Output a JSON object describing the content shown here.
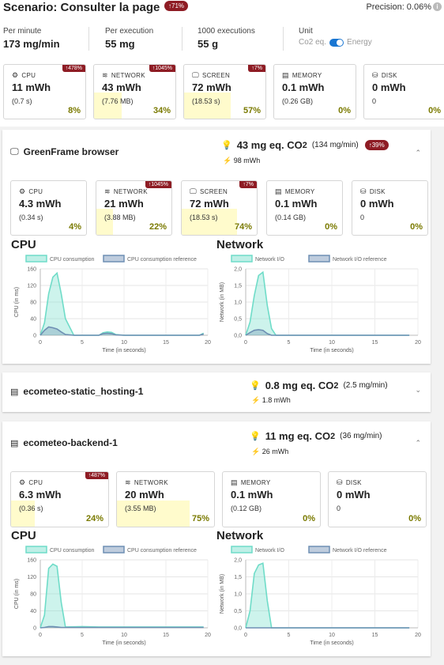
{
  "scenario": {
    "title": "Scenario: Consulter la page",
    "badge": "↑71%",
    "precision": "Precision: 0.06%"
  },
  "stats": [
    {
      "label": "Per minute",
      "value": "173 mg/min"
    },
    {
      "label": "Per execution",
      "value": "55 mg"
    },
    {
      "label": "1000 executions",
      "value": "55 g"
    }
  ],
  "unit": {
    "label": "Unit",
    "left": "Co2 eq.",
    "right": "Energy",
    "selected": "Energy"
  },
  "summary_cards": [
    {
      "icon": "cpu-icon",
      "label": "CPU",
      "value": "11 mWh",
      "sub": "(0.7 s)",
      "pct": "8%",
      "badge": "↑478%",
      "fill": 0.08
    },
    {
      "icon": "wifi-icon",
      "label": "NETWORK",
      "value": "43 mWh",
      "sub": "(7.76 MB)",
      "pct": "34%",
      "badge": "↑1045%",
      "fill": 0.34
    },
    {
      "icon": "monitor-icon",
      "label": "SCREEN",
      "value": "72 mWh",
      "sub": "(18.53 s)",
      "pct": "57%",
      "badge": "↑7%",
      "fill": 0.57
    },
    {
      "icon": "memory-icon",
      "label": "MEMORY",
      "value": "0.1 mWh",
      "sub": "(0.26 GB)",
      "pct": "0%",
      "badge": "",
      "fill": 0
    },
    {
      "icon": "disk-icon",
      "label": "DISK",
      "value": "0 mWh",
      "sub": "0",
      "pct": "0%",
      "badge": "",
      "fill": 0
    }
  ],
  "containers": [
    {
      "title": "GreenFrame browser",
      "co2": "43 mg eq. CO",
      "rate": "(134 mg/min)",
      "badge": "↑39%",
      "mwh": "98 mWh",
      "chevron": "⌃",
      "cards": [
        {
          "icon": "cpu-icon",
          "label": "CPU",
          "value": "4.3 mWh",
          "sub": "(0.34 s)",
          "pct": "4%",
          "badge": "",
          "fill": 0.04
        },
        {
          "icon": "wifi-icon",
          "label": "NETWORK",
          "value": "21 mWh",
          "sub": "(3.88 MB)",
          "pct": "22%",
          "badge": "↑1045%",
          "fill": 0.22
        },
        {
          "icon": "monitor-icon",
          "label": "SCREEN",
          "value": "72 mWh",
          "sub": "(18.53 s)",
          "pct": "74%",
          "badge": "↑7%",
          "fill": 0.74
        },
        {
          "icon": "memory-icon",
          "label": "MEMORY",
          "value": "0.1 mWh",
          "sub": "(0.14 GB)",
          "pct": "0%",
          "badge": "",
          "fill": 0
        },
        {
          "icon": "disk-icon",
          "label": "DISK",
          "value": "0 mWh",
          "sub": "0",
          "pct": "0%",
          "badge": "",
          "fill": 0
        }
      ]
    },
    {
      "title": "ecometeo-static_hosting-1",
      "co2": "0.8 mg eq. CO",
      "rate": "(2.5 mg/min)",
      "badge": "",
      "mwh": "1.8 mWh",
      "chevron": "⌄"
    },
    {
      "title": "ecometeo-backend-1",
      "co2": "11 mg eq. CO",
      "rate": "(36 mg/min)",
      "badge": "",
      "mwh": "26 mWh",
      "chevron": "⌃",
      "cards": [
        {
          "icon": "cpu-icon",
          "label": "CPU",
          "value": "6.3 mWh",
          "sub": "(0.36 s)",
          "pct": "24%",
          "badge": "↑487%",
          "fill": 0.24
        },
        {
          "icon": "wifi-icon",
          "label": "NETWORK",
          "value": "20 mWh",
          "sub": "(3.55 MB)",
          "pct": "75%",
          "badge": "",
          "fill": 0.75
        },
        {
          "icon": "memory-icon",
          "label": "MEMORY",
          "value": "0.1 mWh",
          "sub": "(0.12 GB)",
          "pct": "0%",
          "badge": "",
          "fill": 0
        },
        {
          "icon": "disk-icon",
          "label": "DISK",
          "value": "0 mWh",
          "sub": "0",
          "pct": "0%",
          "badge": "",
          "fill": 0
        }
      ]
    }
  ],
  "co2_subscript": "2",
  "colors": {
    "primary": "#6fdcc8",
    "reference": "#6e8fb3",
    "badge": "#8e1c24",
    "highlight": "#fffbcc",
    "toggle": "#1976d2"
  },
  "chart_data": [
    {
      "type": "area",
      "title": "CPU",
      "legend": [
        "CPU consumption",
        "CPU consumption reference"
      ],
      "xlabel": "Time (in seconds)",
      "ylabel": "CPU (in ms)",
      "xlim": [
        0,
        20
      ],
      "ylim": [
        0,
        160
      ],
      "xticks": [
        0,
        5,
        10,
        15,
        20
      ],
      "yticks": [
        0,
        40,
        80,
        120,
        160
      ],
      "series": [
        {
          "name": "CPU consumption",
          "x": [
            0,
            0.5,
            1,
            1.5,
            2,
            2.5,
            3,
            4,
            7,
            7.5,
            8,
            8.5,
            9,
            10,
            19,
            19.5
          ],
          "y": [
            0,
            30,
            100,
            140,
            150,
            100,
            40,
            0,
            0,
            6,
            8,
            7,
            2,
            0,
            0,
            5
          ]
        },
        {
          "name": "CPU consumption reference",
          "x": [
            0,
            0.5,
            1,
            1.5,
            2,
            2.5,
            3,
            4,
            7,
            7.5,
            8,
            8.5,
            9,
            10,
            19,
            19.5
          ],
          "y": [
            0,
            12,
            20,
            18,
            15,
            8,
            2,
            0,
            0,
            4,
            5,
            4,
            1,
            0,
            0,
            3
          ]
        }
      ]
    },
    {
      "type": "area",
      "title": "Network",
      "legend": [
        "Network I/O",
        "Network I/O reference"
      ],
      "xlabel": "Time (in seconds)",
      "ylabel": "Network (in MB)",
      "xlim": [
        0,
        20
      ],
      "ylim": [
        0,
        2.0
      ],
      "xticks": [
        0,
        5,
        10,
        15,
        20
      ],
      "yticks": [
        0,
        0.5,
        1.0,
        1.5,
        2.0
      ],
      "series": [
        {
          "name": "Network I/O",
          "x": [
            0,
            0.5,
            1,
            1.5,
            2,
            2.5,
            3,
            3.5,
            19
          ],
          "y": [
            0,
            0.4,
            1.2,
            1.8,
            1.9,
            0.9,
            0.2,
            0,
            0
          ]
        },
        {
          "name": "Network I/O reference",
          "x": [
            0,
            0.5,
            1,
            1.5,
            2,
            2.5,
            3,
            3.5,
            19
          ],
          "y": [
            0,
            0.08,
            0.15,
            0.17,
            0.15,
            0.05,
            0,
            0,
            0
          ]
        }
      ]
    },
    {
      "type": "area",
      "title": "CPU",
      "legend": [
        "CPU consumption",
        "CPU consumption reference"
      ],
      "xlabel": "Time (in seconds)",
      "ylabel": "CPU (in ms)",
      "xlim": [
        0,
        20
      ],
      "ylim": [
        0,
        160
      ],
      "xticks": [
        0,
        5,
        10,
        15,
        20
      ],
      "yticks": [
        0,
        40,
        80,
        120,
        160
      ],
      "series": [
        {
          "name": "CPU consumption",
          "x": [
            0,
            0.5,
            1,
            1.5,
            2,
            2.5,
            3,
            5,
            7,
            19.5
          ],
          "y": [
            0,
            30,
            140,
            150,
            145,
            60,
            2,
            3,
            2,
            2
          ]
        },
        {
          "name": "CPU consumption reference",
          "x": [
            0,
            0.5,
            1,
            1.5,
            2,
            2.5,
            3,
            5,
            7,
            19.5
          ],
          "y": [
            0,
            1,
            3,
            3,
            2,
            1,
            1,
            1,
            1,
            1
          ]
        }
      ]
    },
    {
      "type": "area",
      "title": "Network",
      "legend": [
        "Network I/O",
        "Network I/O reference"
      ],
      "xlabel": "Time (in seconds)",
      "ylabel": "Network (in MB)",
      "xlim": [
        0,
        20
      ],
      "ylim": [
        0,
        2.0
      ],
      "xticks": [
        0,
        5,
        10,
        15,
        20
      ],
      "yticks": [
        0,
        0.5,
        1.0,
        1.5,
        2.0
      ],
      "series": [
        {
          "name": "Network I/O",
          "x": [
            0,
            0.5,
            1,
            1.5,
            2,
            2.5,
            3,
            19
          ],
          "y": [
            0,
            0.5,
            1.6,
            1.85,
            1.9,
            0.8,
            0,
            0
          ]
        },
        {
          "name": "Network I/O reference",
          "x": [
            0,
            0.5,
            1,
            1.5,
            2,
            2.5,
            3,
            19
          ],
          "y": [
            0,
            0,
            0,
            0,
            0,
            0,
            0,
            0
          ]
        }
      ]
    }
  ]
}
